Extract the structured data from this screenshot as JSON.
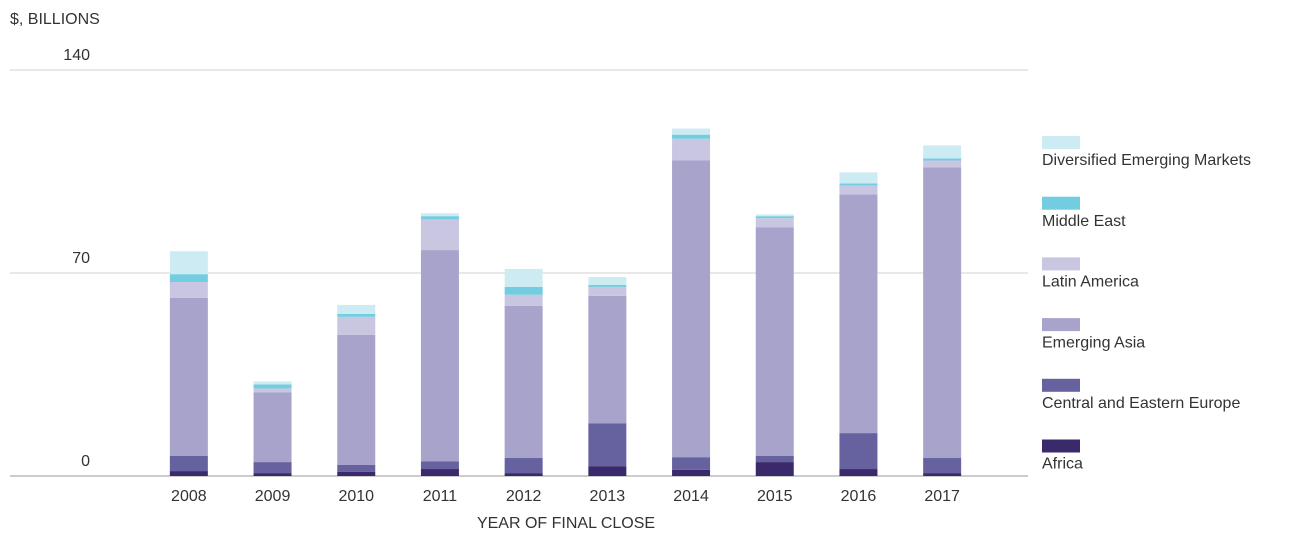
{
  "chart_data": {
    "type": "stacked_bar",
    "y_axis_label": "$, BILLIONS",
    "x_axis_label": "YEAR OF FINAL CLOSE",
    "categories": [
      "2008",
      "2009",
      "2010",
      "2011",
      "2012",
      "2013",
      "2014",
      "2015",
      "2016",
      "2017"
    ],
    "series": [
      {
        "name": "Africa",
        "color": "#3b2a6b",
        "values": [
          1.7,
          1.0,
          1.4,
          2.4,
          1.0,
          3.4,
          2.1,
          4.8,
          2.4,
          1.0
        ]
      },
      {
        "name": "Central and Eastern Europe",
        "color": "#6662a0",
        "values": [
          5.2,
          3.8,
          2.4,
          2.7,
          5.2,
          14.8,
          4.4,
          2.1,
          12.4,
          5.2
        ]
      },
      {
        "name": "Emerging Asia",
        "color": "#a7a3cb",
        "values": [
          54.5,
          24.0,
          44.9,
          72.8,
          52.5,
          43.9,
          102.3,
          78.9,
          82.3,
          100.2
        ]
      },
      {
        "name": "Latin America",
        "color": "#c8c6e0",
        "values": [
          5.5,
          1.4,
          6.2,
          10.6,
          3.8,
          3.1,
          7.5,
          3.1,
          3.1,
          2.4
        ]
      },
      {
        "name": "Middle East",
        "color": "#72cde0",
        "values": [
          2.7,
          1.4,
          1.0,
          1.1,
          2.7,
          0.7,
          1.4,
          0.7,
          0.7,
          0.7
        ]
      },
      {
        "name": "Diversified Emerging Markets",
        "color": "#cdebf2",
        "values": [
          7.9,
          1.0,
          3.1,
          1.0,
          6.2,
          2.7,
          2.1,
          0.6,
          3.8,
          4.5
        ]
      }
    ],
    "ylim": [
      0,
      140
    ],
    "yticks": [
      0,
      70,
      140
    ],
    "grid": true,
    "legend": "right"
  }
}
